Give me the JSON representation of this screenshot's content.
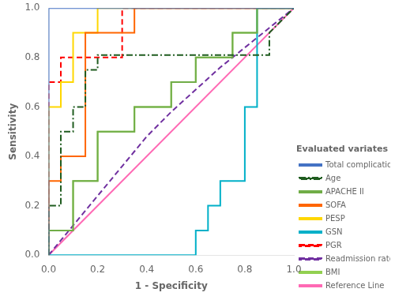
{
  "chart_data": {
    "type": "line",
    "xlabel": "1 - Specificity",
    "ylabel": "Sensitivity",
    "xlim": [
      0.0,
      1.0
    ],
    "ylim": [
      0.0,
      1.0
    ],
    "xticks": [
      {
        "value": 0.0,
        "label": "0.0"
      },
      0.2,
      0.4,
      0.6,
      0.8,
      {
        "value": 1.0,
        "label": "1.0"
      }
    ],
    "yticks": [
      {
        "value": 0.0,
        "label": "0.0"
      },
      0.2,
      0.4,
      0.6,
      0.8,
      {
        "value": 1.0,
        "label": "1.0"
      }
    ],
    "grid": false,
    "legend": "lower right",
    "legend_title": "Evaluated variates",
    "series": [
      {
        "name": "Total complication rate",
        "color": "#4472C4",
        "line_style": "solid",
        "x": [
          0.0,
          0.0,
          0.05,
          0.05,
          1.0
        ],
        "values": [
          0.0,
          1.0,
          1.0,
          1.0,
          1.0
        ]
      },
      {
        "name": "Age",
        "color": "#1F5C1F",
        "line_style": "dashdot",
        "x": [
          0.0,
          0.0,
          0.05,
          0.05,
          0.1,
          0.1,
          0.15,
          0.15,
          0.2,
          0.2,
          0.9,
          0.9,
          1.0
        ],
        "values": [
          0.0,
          0.2,
          0.2,
          0.5,
          0.5,
          0.6,
          0.6,
          0.75,
          0.75,
          0.81,
          0.81,
          0.9,
          1.0
        ]
      },
      {
        "name": "APACHE II",
        "color": "#70AD47",
        "line_style": "solid",
        "x": [
          0.0,
          0.0,
          0.1,
          0.1,
          0.2,
          0.2,
          0.35,
          0.35,
          0.5,
          0.5,
          0.6,
          0.6,
          0.75,
          0.75,
          0.85,
          0.85,
          1.0
        ],
        "values": [
          0.0,
          0.1,
          0.1,
          0.3,
          0.3,
          0.5,
          0.5,
          0.6,
          0.6,
          0.7,
          0.7,
          0.8,
          0.8,
          0.9,
          0.9,
          1.0,
          1.0
        ]
      },
      {
        "name": "SOFA",
        "color": "#FF6600",
        "line_style": "solid",
        "x": [
          0.0,
          0.0,
          0.05,
          0.05,
          0.15,
          0.15,
          0.35,
          0.35,
          0.5,
          0.5,
          1.0
        ],
        "values": [
          0.0,
          0.3,
          0.3,
          0.4,
          0.4,
          0.9,
          0.9,
          1.0,
          1.0,
          1.0,
          1.0
        ]
      },
      {
        "name": "PESP",
        "color": "#FFD700",
        "line_style": "solid",
        "x": [
          0.0,
          0.0,
          0.05,
          0.05,
          0.1,
          0.1,
          0.2,
          0.2,
          1.0
        ],
        "values": [
          0.0,
          0.6,
          0.6,
          0.7,
          0.7,
          0.9,
          0.9,
          1.0,
          1.0
        ]
      },
      {
        "name": "GSN",
        "color": "#00B0C8",
        "line_style": "solid",
        "x": [
          0.0,
          0.0,
          0.6,
          0.6,
          0.65,
          0.65,
          0.7,
          0.7,
          0.8,
          0.8,
          0.85,
          0.85,
          1.0
        ],
        "values": [
          0.0,
          0.0,
          0.0,
          0.1,
          0.1,
          0.2,
          0.2,
          0.3,
          0.3,
          0.6,
          0.6,
          1.0,
          1.0
        ]
      },
      {
        "name": "PGR",
        "color": "#FF0000",
        "line_style": "dashed",
        "x": [
          0.0,
          0.0,
          0.0,
          0.05,
          0.05,
          0.3,
          0.3,
          1.0
        ],
        "values": [
          0.0,
          0.6,
          0.7,
          0.7,
          0.8,
          0.8,
          1.0,
          1.0
        ]
      },
      {
        "name": "Readmission rate",
        "color": "#7030A0",
        "line_style": "dashed",
        "x": [
          0.0,
          0.05,
          0.1,
          0.15,
          0.2,
          0.25,
          0.3,
          0.35,
          0.4,
          0.5,
          0.6,
          0.7,
          0.8,
          0.9,
          1.0
        ],
        "values": [
          0.0,
          0.06,
          0.12,
          0.18,
          0.24,
          0.3,
          0.36,
          0.42,
          0.48,
          0.58,
          0.67,
          0.76,
          0.84,
          0.92,
          1.0
        ]
      },
      {
        "name": "BMI",
        "color": "#92D050",
        "line_style": "solid",
        "x": [
          0.0,
          0.0,
          0.1,
          0.1,
          0.2,
          0.2,
          0.35,
          0.35,
          0.5,
          0.5,
          0.6,
          0.6,
          0.75,
          0.75,
          0.85,
          0.85,
          1.0
        ],
        "values": [
          0.0,
          0.1,
          0.1,
          0.3,
          0.3,
          0.5,
          0.5,
          0.6,
          0.6,
          0.7,
          0.7,
          0.8,
          0.8,
          0.9,
          0.9,
          1.0,
          1.0
        ]
      },
      {
        "name": "Reference Line",
        "color": "#FF69B4",
        "line_style": "solid",
        "x": [
          0.0,
          1.0
        ],
        "values": [
          0.0,
          1.0
        ]
      }
    ]
  }
}
